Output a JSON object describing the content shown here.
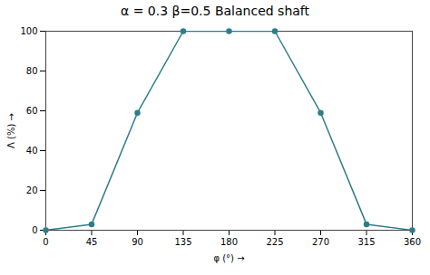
{
  "chart_data": {
    "type": "line",
    "title": "α = 0.3    β=0.5    Balanced shaft",
    "x": [
      0,
      45,
      90,
      135,
      180,
      225,
      270,
      315,
      360
    ],
    "values": [
      0,
      3,
      59,
      100,
      100,
      100,
      59,
      3,
      0
    ],
    "color": "#2e7d8a",
    "marker": "circle",
    "xlabel": "φ (°)",
    "ylabel": "Λ (%)",
    "xlim": [
      0,
      360
    ],
    "ylim": [
      0,
      100
    ],
    "xticks": [
      0,
      45,
      90,
      135,
      180,
      225,
      270,
      315,
      360
    ],
    "yticks": [
      0,
      20,
      40,
      60,
      80,
      100
    ],
    "grid": false
  }
}
